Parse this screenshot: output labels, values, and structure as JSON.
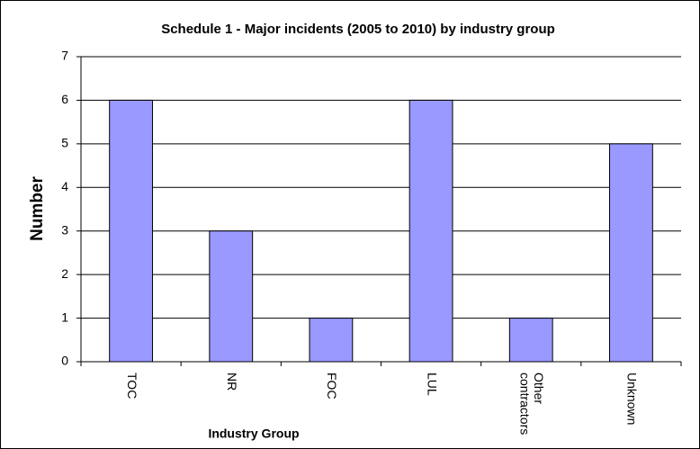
{
  "chart_data": {
    "type": "bar",
    "title": "Schedule 1 - Major incidents (2005 to 2010) by industry group",
    "x_label": "Industry Group",
    "y_label": "Number",
    "categories": [
      "TOC",
      "NR",
      "FOC",
      "LUL",
      "Other contractors",
      "Unknown"
    ],
    "values": [
      6,
      3,
      1,
      6,
      1,
      5
    ],
    "color": "#9999ff",
    "ylim": [
      0,
      7
    ],
    "yticks": [
      0,
      1,
      2,
      3,
      4,
      5,
      6,
      7
    ],
    "grid": true
  }
}
